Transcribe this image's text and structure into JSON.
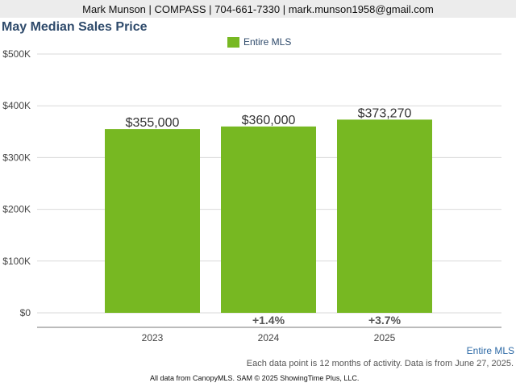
{
  "header": {
    "contact": "Mark Munson | COMPASS | 704-661-7330 | mark.munson1958@gmail.com"
  },
  "footer": {
    "series_link": "Entire MLS",
    "note": "Each data point is 12 months of activity. Data is from June 27, 2025.",
    "credit": "All data from CanopyMLS. SAM © 2025 ShowingTime Plus, LLC."
  },
  "colors": {
    "bar": "#77b822",
    "title": "#2e4a6b",
    "grid": "#d9d9d9"
  },
  "chart_data": {
    "type": "bar",
    "title": "May Median Sales Price",
    "categories": [
      "2023",
      "2024",
      "2025"
    ],
    "series": [
      {
        "name": "Entire MLS",
        "values": [
          355000,
          360000,
          373270
        ]
      }
    ],
    "data_labels": [
      "$355,000",
      "$360,000",
      "$373,270"
    ],
    "change_labels": [
      "",
      "+1.4%",
      "+3.7%"
    ],
    "y_ticks": [
      0,
      100000,
      200000,
      300000,
      400000,
      500000
    ],
    "y_tick_labels": [
      "$0",
      "$100K",
      "$200K",
      "$300K",
      "$400K",
      "$500K"
    ],
    "ylim": [
      0,
      500000
    ],
    "legend_position": "top-center",
    "grid": true
  }
}
